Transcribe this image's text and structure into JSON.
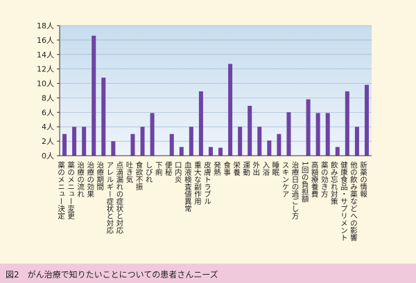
{
  "caption": "図2　がん治療で知りたいことについての患者さんニーズ",
  "chart_data": {
    "type": "bar",
    "title": "図2　がん治療で知りたいことについての患者さんニーズ",
    "ylim": [
      0,
      18
    ],
    "unit": "人",
    "yticks": [
      0,
      2,
      4,
      6,
      8,
      10,
      12,
      14,
      16,
      18
    ],
    "ytick_labels": [
      "0人",
      "2人",
      "4人",
      "6人",
      "8人",
      "10人",
      "12人",
      "14人",
      "16人",
      "18人"
    ],
    "grid": true,
    "colors": {
      "bar": "#6e43a3",
      "plot_top": "#c6dcee",
      "plot_bottom": "#eef4fa",
      "axis": "#333333"
    },
    "categories": [
      "薬のメニュー決定",
      "薬のメニュー変更",
      "治療の流れ",
      "治療の効果",
      "治療期間",
      "アレルギー症状と対応",
      "点滴漏れの症状と対応",
      "吐き気",
      "食欲不振",
      "しびれ",
      "下痢",
      "便秘",
      "口内炎",
      "血液検査値異常",
      "重大な副作用",
      "皮膚トラブル",
      "発熱",
      "食事",
      "栄養",
      "運動",
      "外出",
      "入浴",
      "睡眠",
      "スキンケア",
      "治療日の過ごし方",
      "1回の負担額",
      "高額療養費",
      "薬の効き方",
      "飲み忘れ対策",
      "健康食品・サプリメント",
      "他の飲み薬などへの影響",
      "新薬の情報"
    ],
    "values": [
      3,
      4,
      4,
      16.6,
      10.8,
      2,
      0,
      3,
      4,
      5.9,
      0,
      3,
      1.2,
      4,
      8.9,
      1.2,
      1.1,
      12.7,
      4,
      6.9,
      4,
      2.1,
      3,
      6,
      0,
      7.8,
      5.9,
      5.9,
      1.2,
      8.9,
      4,
      9.8
    ]
  }
}
